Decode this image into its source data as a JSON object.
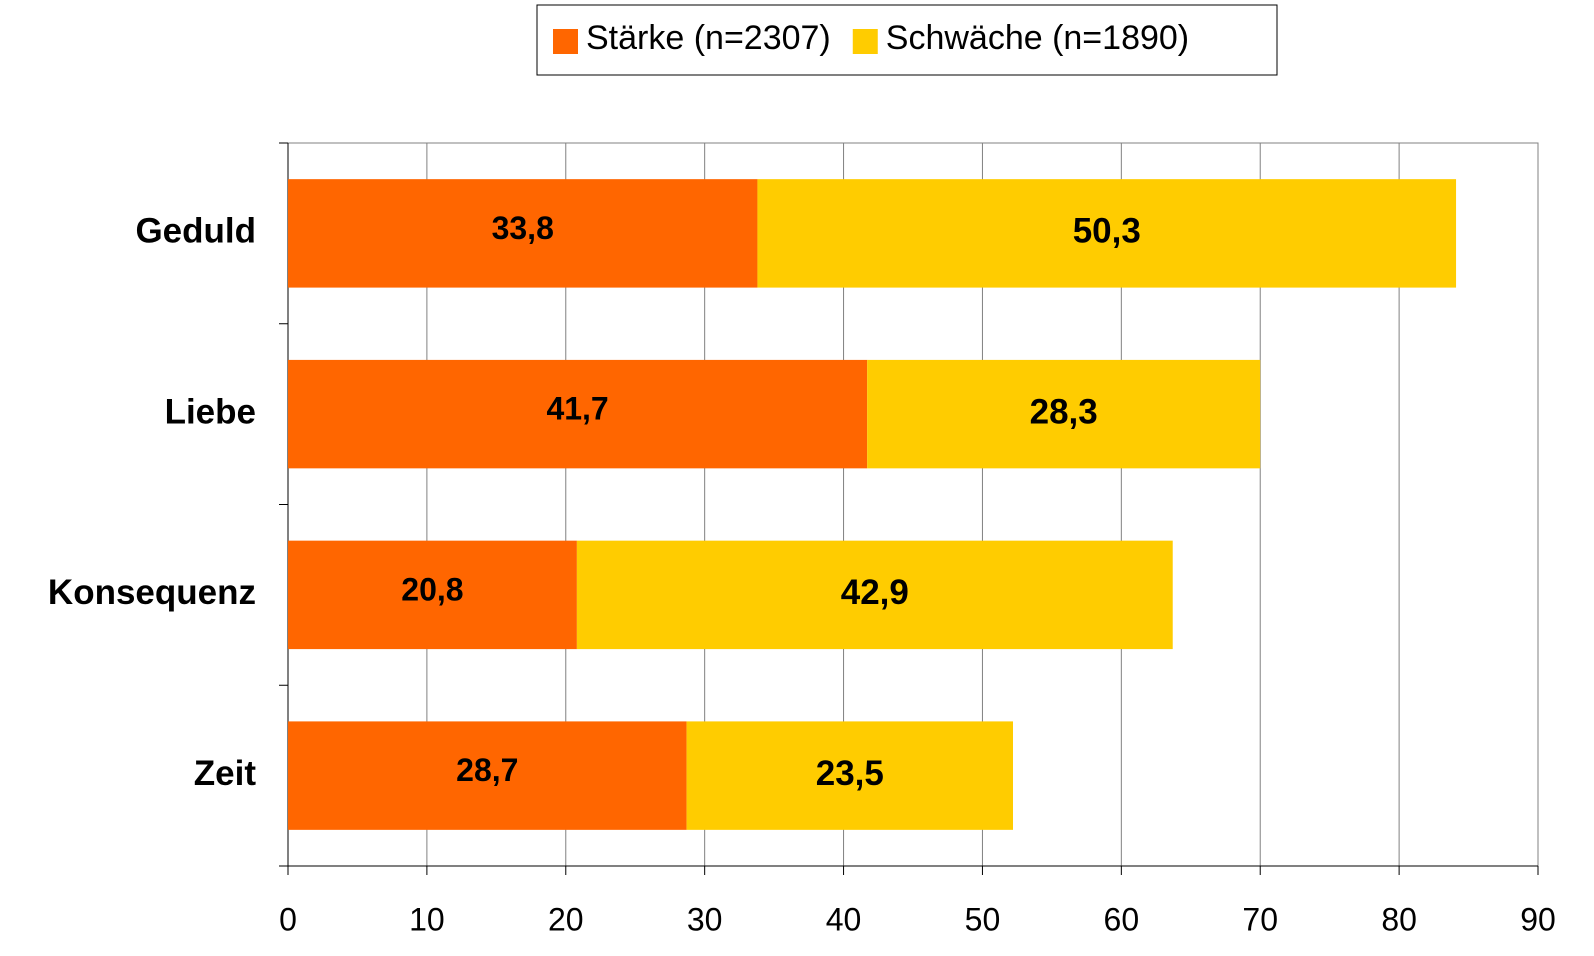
{
  "chart_data": {
    "type": "stacked_barh",
    "categories": [
      "Geduld",
      "Liebe",
      "Konsequenz",
      "Zeit"
    ],
    "series": [
      {
        "name": "Stärke (n=2307)",
        "color": "#ff6600",
        "values": [
          33.8,
          41.7,
          20.8,
          28.7
        ],
        "value_labels": [
          "33,8",
          "41,7",
          "20,8",
          "28,7"
        ]
      },
      {
        "name": "Schwäche (n=1890)",
        "color": "#ffcc00",
        "values": [
          50.3,
          28.3,
          42.9,
          23.5
        ],
        "value_labels": [
          "50,3",
          "28,3",
          "42,9",
          "23,5"
        ]
      }
    ],
    "xlim": [
      0,
      90
    ],
    "xticks": [
      0,
      10,
      20,
      30,
      40,
      50,
      60,
      70,
      80,
      90
    ],
    "grid": true,
    "legend": "top"
  }
}
